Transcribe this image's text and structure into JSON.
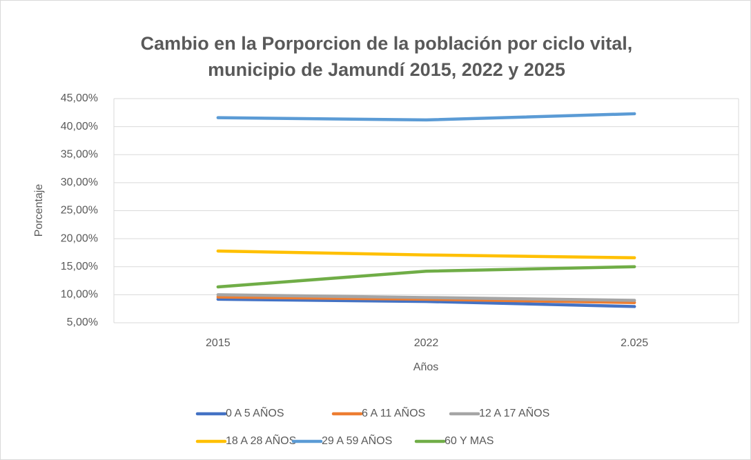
{
  "chart_data": {
    "type": "line",
    "title": [
      "Cambio en la Porporcion de la población por ciclo vital,",
      "municipio de Jamundí 2015, 2022 y 2025"
    ],
    "x_label": "Años",
    "y_label": "Porcentaje",
    "categories": [
      "2015",
      "2022",
      "2.025"
    ],
    "series": [
      {
        "name": "0 A 5 AÑOS",
        "color": "#4472c4",
        "values": [
          9.2,
          8.8,
          7.9
        ]
      },
      {
        "name": "6 A 11 AÑOS",
        "color": "#ed7d31",
        "values": [
          9.6,
          9.2,
          8.6
        ]
      },
      {
        "name": "12 A 17 AÑOS",
        "color": "#a5a5a5",
        "values": [
          10.0,
          9.5,
          9.0
        ]
      },
      {
        "name": "18 A 28 AÑOS",
        "color": "#ffc000",
        "values": [
          17.8,
          17.1,
          16.6
        ]
      },
      {
        "name": "29 A 59 AÑOS",
        "color": "#5b9bd5",
        "values": [
          41.6,
          41.2,
          42.3
        ]
      },
      {
        "name": "60 Y MAS",
        "color": "#70ad47",
        "values": [
          11.4,
          14.2,
          15.0
        ]
      }
    ],
    "ylim": [
      5,
      45
    ],
    "yticks": [
      {
        "value": 5,
        "label": "5,00%"
      },
      {
        "value": 10,
        "label": "10,00%"
      },
      {
        "value": 15,
        "label": "15,00%"
      },
      {
        "value": 20,
        "label": "20,00%"
      },
      {
        "value": 25,
        "label": "25,00%"
      },
      {
        "value": 30,
        "label": "30,00%"
      },
      {
        "value": 35,
        "label": "35,00%"
      },
      {
        "value": 40,
        "label": "40,00%"
      },
      {
        "value": 45,
        "label": "45,00%"
      }
    ],
    "grid": true,
    "legend": "bottom"
  }
}
